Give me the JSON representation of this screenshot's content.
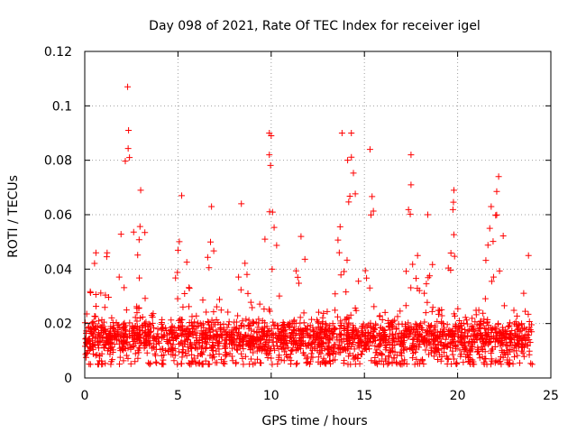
{
  "chart_data": {
    "type": "scatter",
    "title": "Day 098 of 2021, Rate Of TEC Index for receiver igel",
    "xlabel": "GPS time / hours",
    "ylabel": "ROTI / TECUs",
    "xlim": [
      0,
      25
    ],
    "ylim": [
      0,
      0.12
    ],
    "x_ticks": [
      "0",
      "5",
      "10",
      "15",
      "20",
      "25"
    ],
    "y_ticks": [
      "0",
      "0.02",
      "0.04",
      "0.06",
      "0.08",
      "0.1",
      "0.12"
    ],
    "x_tick_values": [
      0,
      5,
      10,
      15,
      20,
      25
    ],
    "y_tick_values": [
      0,
      0.02,
      0.04,
      0.06,
      0.08,
      0.1,
      0.12
    ],
    "grid": true,
    "marker": "+",
    "series": [
      {
        "name": "ROTI",
        "color": "#ff0000",
        "x_range": [
          0,
          24
        ],
        "typical_range": [
          0.005,
          0.025
        ],
        "peaks": [
          {
            "x": 0.6,
            "y": 0.046
          },
          {
            "x": 1.2,
            "y": 0.046
          },
          {
            "x": 2.3,
            "y": 0.107
          },
          {
            "x": 2.35,
            "y": 0.091
          },
          {
            "x": 2.4,
            "y": 0.081
          },
          {
            "x": 3.0,
            "y": 0.069
          },
          {
            "x": 5.2,
            "y": 0.067
          },
          {
            "x": 6.8,
            "y": 0.063
          },
          {
            "x": 8.4,
            "y": 0.064
          },
          {
            "x": 9.9,
            "y": 0.09
          },
          {
            "x": 10.0,
            "y": 0.089
          },
          {
            "x": 9.9,
            "y": 0.082
          },
          {
            "x": 11.6,
            "y": 0.052
          },
          {
            "x": 13.8,
            "y": 0.09
          },
          {
            "x": 14.3,
            "y": 0.09
          },
          {
            "x": 14.1,
            "y": 0.08
          },
          {
            "x": 15.3,
            "y": 0.084
          },
          {
            "x": 17.5,
            "y": 0.082
          },
          {
            "x": 17.5,
            "y": 0.071
          },
          {
            "x": 18.4,
            "y": 0.06
          },
          {
            "x": 19.8,
            "y": 0.069
          },
          {
            "x": 21.8,
            "y": 0.063
          },
          {
            "x": 22.2,
            "y": 0.074
          },
          {
            "x": 23.8,
            "y": 0.045
          }
        ]
      }
    ]
  }
}
